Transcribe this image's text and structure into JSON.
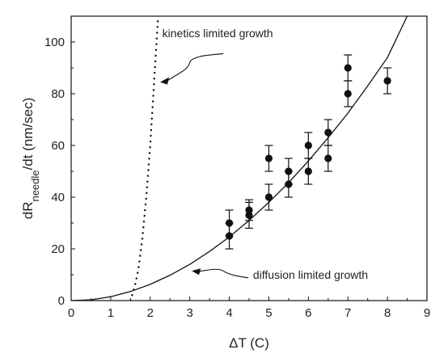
{
  "chart_data": {
    "type": "scatter",
    "title": "",
    "xlabel": "ΔT (C)",
    "ylabel_parts": [
      "dR",
      "needle",
      "/dt (nm/sec)"
    ],
    "xlim": [
      0,
      9
    ],
    "ylim": [
      0,
      110
    ],
    "x_ticks": [
      0,
      1,
      2,
      3,
      4,
      5,
      6,
      7,
      8,
      9
    ],
    "y_ticks": [
      0,
      20,
      40,
      60,
      80,
      100
    ],
    "grid": false,
    "legend": "none",
    "series": [
      {
        "kind": "points-with-error-bars",
        "color": "#111111",
        "points": [
          {
            "x": 4.0,
            "y": 25,
            "err": 5
          },
          {
            "x": 4.0,
            "y": 30,
            "err": 5
          },
          {
            "x": 4.5,
            "y": 33,
            "err": 5
          },
          {
            "x": 4.5,
            "y": 35,
            "err": 4
          },
          {
            "x": 5.0,
            "y": 40,
            "err": 5
          },
          {
            "x": 5.0,
            "y": 55,
            "err": 5
          },
          {
            "x": 5.5,
            "y": 45,
            "err": 5
          },
          {
            "x": 5.5,
            "y": 50,
            "err": 5
          },
          {
            "x": 6.0,
            "y": 50,
            "err": 5
          },
          {
            "x": 6.0,
            "y": 60,
            "err": 5
          },
          {
            "x": 6.5,
            "y": 55,
            "err": 5
          },
          {
            "x": 6.5,
            "y": 65,
            "err": 5
          },
          {
            "x": 7.0,
            "y": 80,
            "err": 5
          },
          {
            "x": 7.0,
            "y": 90,
            "err": 5
          },
          {
            "x": 8.0,
            "y": 85,
            "err": 5
          }
        ]
      },
      {
        "kind": "solid-curve",
        "color": "#111111",
        "points": [
          [
            0,
            0
          ],
          [
            0.5,
            0.3
          ],
          [
            1,
            1.5
          ],
          [
            1.5,
            3.5
          ],
          [
            2,
            6.3
          ],
          [
            2.5,
            9.8
          ],
          [
            3,
            14
          ],
          [
            3.5,
            19
          ],
          [
            4,
            24.6
          ],
          [
            4.5,
            31
          ],
          [
            5,
            38
          ],
          [
            5.5,
            45.6
          ],
          [
            6,
            54
          ],
          [
            6.5,
            63
          ],
          [
            7,
            72.5
          ],
          [
            7.5,
            83
          ],
          [
            8,
            94
          ],
          [
            8.5,
            110
          ]
        ]
      },
      {
        "kind": "dotted-curve",
        "color": "#111111",
        "points": [
          [
            1.5,
            0
          ],
          [
            1.6,
            5
          ],
          [
            1.7,
            12
          ],
          [
            1.8,
            24
          ],
          [
            1.9,
            40
          ],
          [
            2.0,
            60
          ],
          [
            2.1,
            85
          ],
          [
            2.2,
            110
          ]
        ]
      }
    ],
    "annotations": [
      {
        "text": "kinetics limited growth",
        "x": 3.0,
        "y": 103.5
      },
      {
        "text": "diffusion limited growth",
        "x": 4.6,
        "y": 10
      }
    ]
  }
}
